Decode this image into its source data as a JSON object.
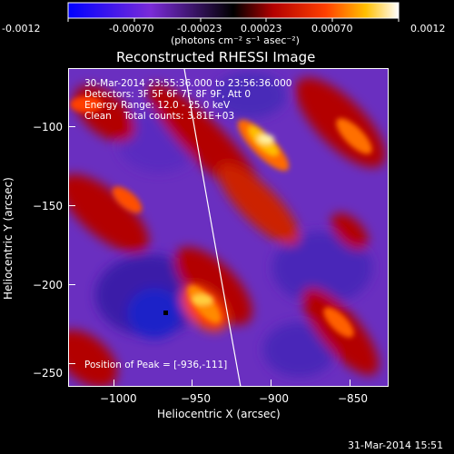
{
  "colorbar": {
    "ticks": [
      "-0.0012",
      "-0.00070",
      "-0.00023",
      "0.00023",
      "0.00070",
      "0.0012"
    ],
    "units": "(photons cm⁻² s⁻¹ asec⁻²)",
    "colors": [
      "#0000ff",
      "#8a2be2",
      "#000000",
      "#b30000",
      "#ff4000",
      "#ffbf00",
      "#ffffff"
    ]
  },
  "title": "Reconstructed RHESSI Image",
  "overlay": {
    "time_range": "30-Mar-2014 23:55:36.000 to 23:56:36.000",
    "detectors": "Detectors: 3F 5F 6F 7F 8F 9F, Att 0",
    "energy": "Energy Range: 12.0 - 25.0 keV",
    "method_counts": "Clean    Total counts: 3.81E+03",
    "peak": "Position of Peak = [-936,-111]"
  },
  "axes": {
    "xlabel": "Heliocentric X (arcsec)",
    "ylabel": "Heliocentric Y (arcsec)",
    "xticks": [
      {
        "label": "−1000",
        "value": -1000
      },
      {
        "label": "−950",
        "value": -950
      },
      {
        "label": "−900",
        "value": -900
      },
      {
        "label": "−850",
        "value": -850
      }
    ],
    "yticks": [
      {
        "label": "−100",
        "value": -100
      },
      {
        "label": "−150",
        "value": -150
      },
      {
        "label": "−200",
        "value": -200
      },
      {
        "label": "−250",
        "value": -250
      }
    ],
    "xlim": [
      -1030,
      -835
    ],
    "ylim": [
      -255,
      -60
    ]
  },
  "footer": {
    "timestamp": "31-Mar-2014 15:51"
  }
}
